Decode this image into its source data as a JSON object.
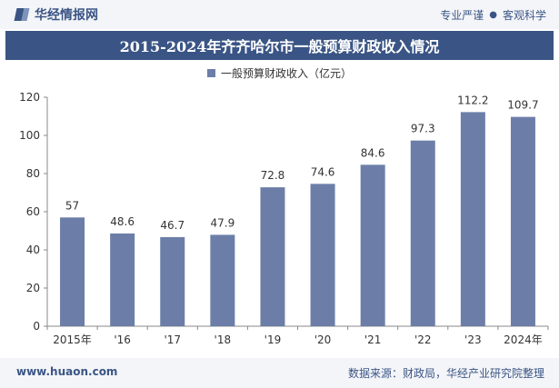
{
  "header": {
    "brand": "华经情报网",
    "slogan_left": "专业严谨",
    "slogan_sep": "●",
    "slogan_right": "客观科学"
  },
  "title": "2015-2024年齐齐哈尔市一般预算财政收入情况",
  "footer": {
    "url": "www.huaon.com",
    "source": "数据来源：财政局，华经产业研究院整理"
  },
  "colors": {
    "bar": "#6c7ea8",
    "title_bg": "#3a5585"
  },
  "chart_data": {
    "type": "bar",
    "categories": [
      "2015年",
      "'16",
      "'17",
      "'18",
      "'19",
      "'20",
      "'21",
      "'22",
      "'23",
      "2024年"
    ],
    "series": [
      {
        "name": "一般预算财政收入（亿元）",
        "values": [
          57,
          48.6,
          46.7,
          47.9,
          72.8,
          74.6,
          84.6,
          97.3,
          112.2,
          109.7
        ]
      }
    ],
    "value_labels": [
      "57",
      "48.6",
      "46.7",
      "47.9",
      "72.8",
      "74.6",
      "84.6",
      "97.3",
      "112.2",
      "109.7"
    ],
    "ylim": [
      0,
      120
    ],
    "yticks": [
      "0",
      "20",
      "40",
      "60",
      "80",
      "100",
      "120"
    ],
    "grid": false,
    "legend_position": "top-center"
  }
}
